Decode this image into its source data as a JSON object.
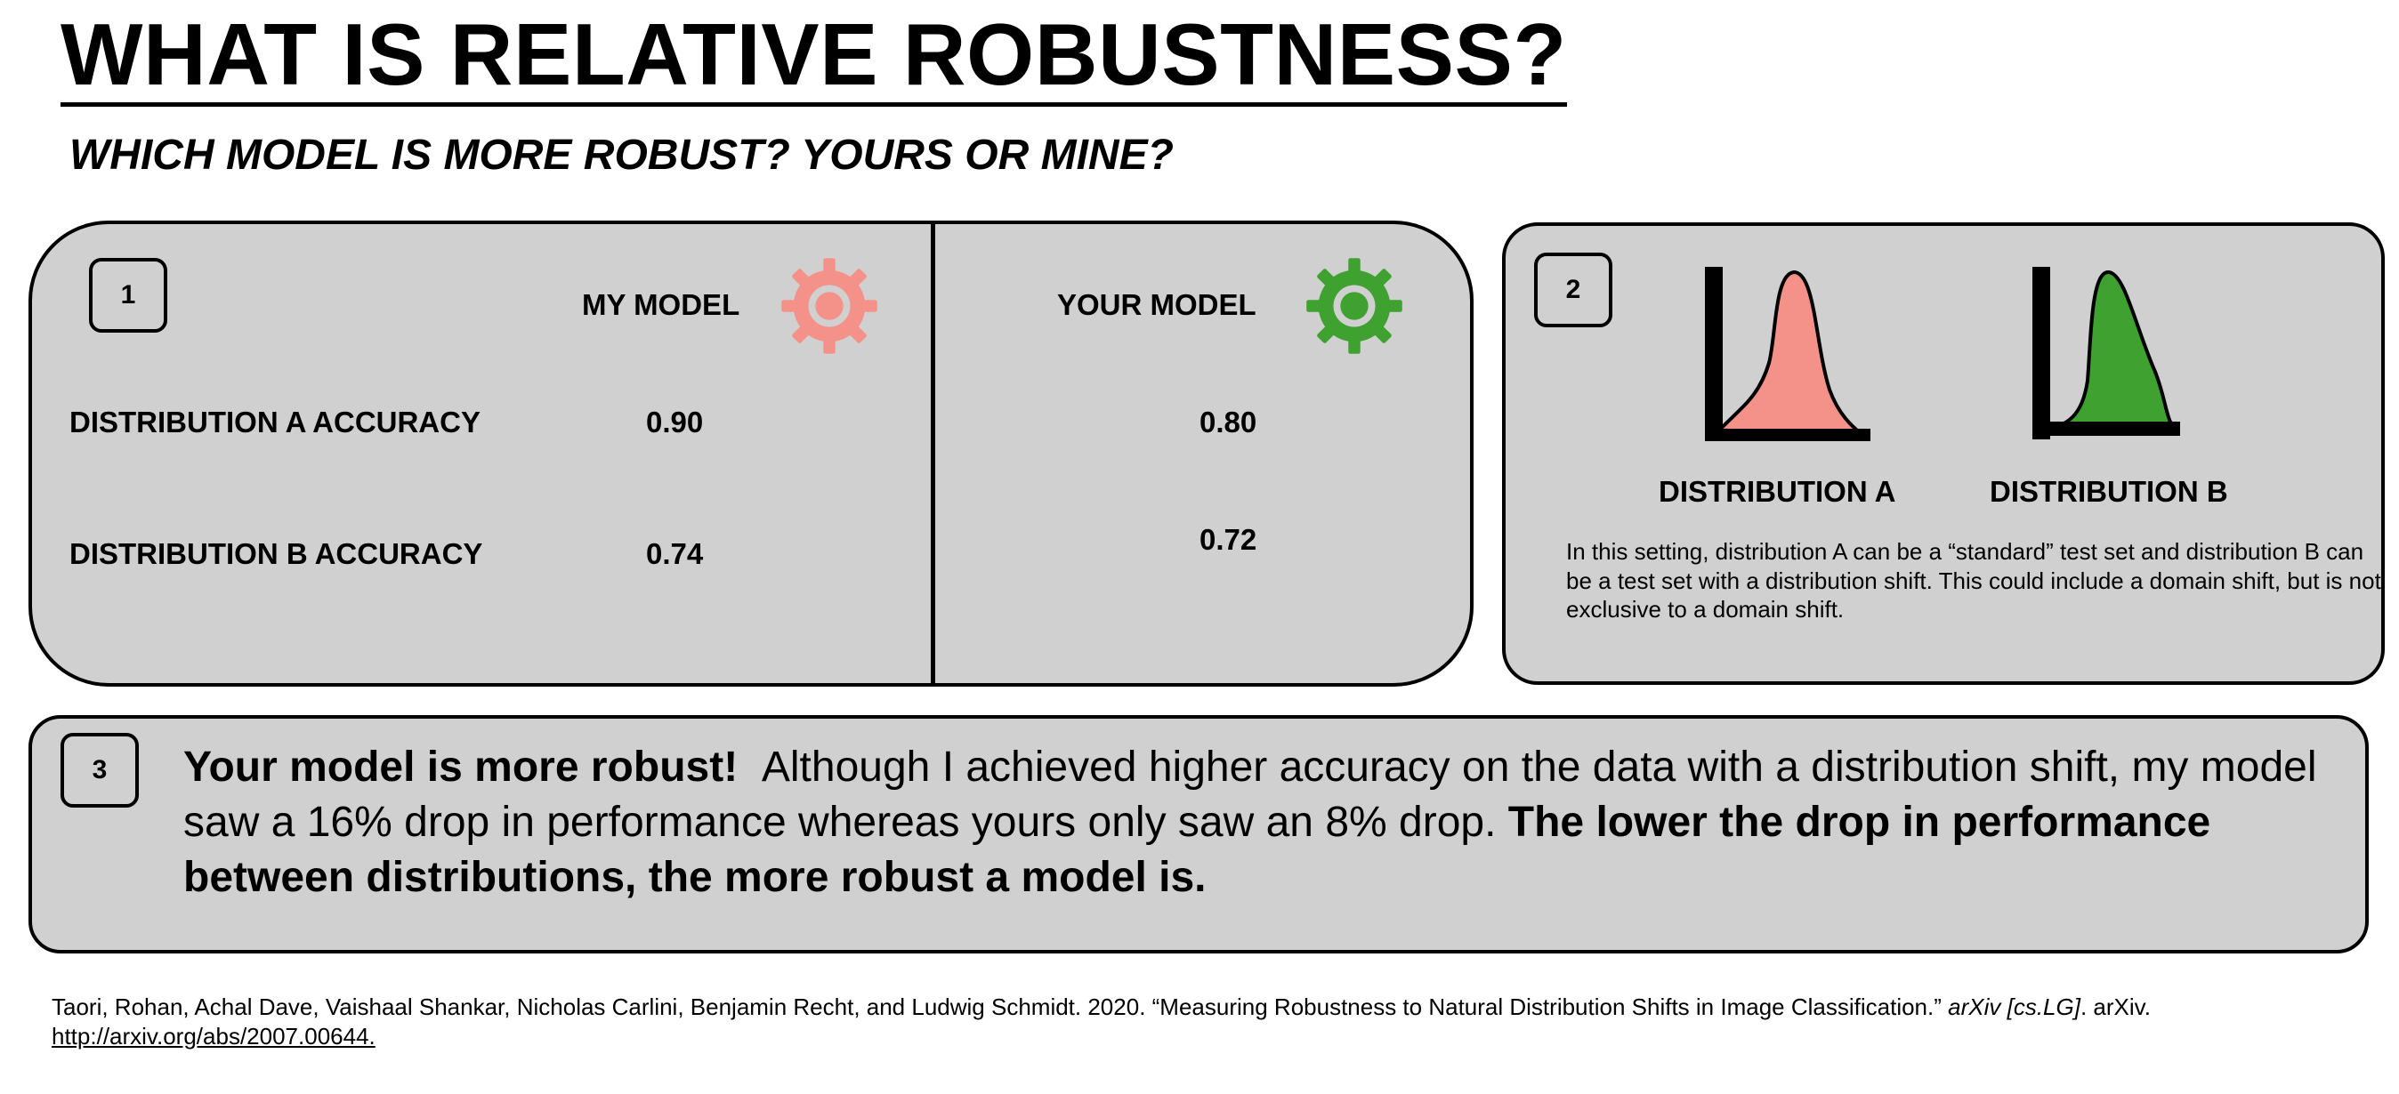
{
  "title": "WHAT IS RELATIVE ROBUSTNESS?",
  "subtitle": "WHICH MODEL IS MORE ROBUST? YOURS OR MINE?",
  "panel1": {
    "step": "1",
    "my_model_label": "MY MODEL",
    "your_model_label": "YOUR MODEL",
    "row_a_label": "DISTRIBUTION A ACCURACY",
    "row_b_label": "DISTRIBUTION B ACCURACY",
    "my_a": "0.90",
    "my_b": "0.74",
    "your_a": "0.80",
    "your_b": "0.72",
    "my_gear_icon": "gear-icon",
    "your_gear_icon": "gear-icon",
    "my_color": "#F4928A",
    "your_color": "#3FA12F"
  },
  "panel2": {
    "step": "2",
    "dist_a_label": "DISTRIBUTION A",
    "dist_b_label": "DISTRIBUTION B",
    "dist_a_color": "#F4928A",
    "dist_b_color": "#3FA12F",
    "description": "In this setting, distribution A can be a “standard” test set and distribution B can be a test set with a distribution shift. This could include a domain shift, but is not exclusive to a domain shift."
  },
  "panel3": {
    "step": "3",
    "lead_bold": "Your model is more robust!",
    "body": "Although I achieved higher accuracy on the data with a distribution shift, my model saw a 16% drop in performance whereas yours only saw an 8% drop.",
    "tail_bold": "The lower the drop in performance between distributions, the more robust a model is."
  },
  "citation": {
    "text": "Taori, Rohan, Achal Dave, Vaishaal Shankar, Nicholas Carlini, Benjamin Recht, and Ludwig Schmidt. 2020. “Measuring Robustness to Natural Distribution Shifts in Image Classification.”",
    "venue": "arXiv [cs.LG]",
    "publisher": ". arXiv.",
    "url": "http://arxiv.org/abs/2007.00644."
  },
  "panel_bg": "#D0D0D0"
}
